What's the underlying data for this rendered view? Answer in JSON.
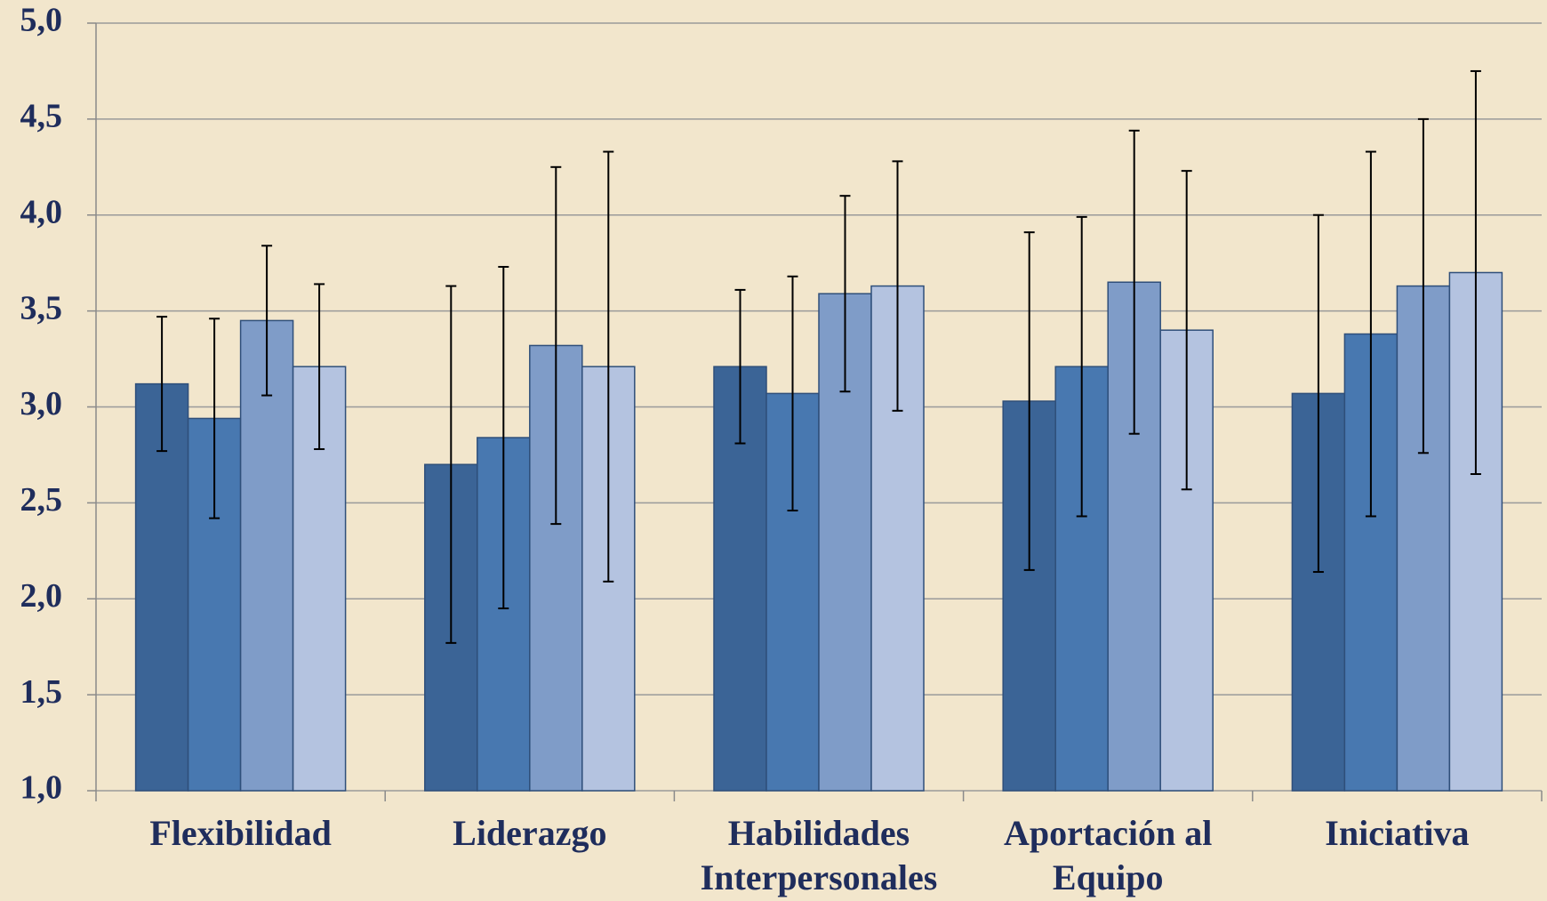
{
  "chart_data": {
    "type": "bar",
    "categories": [
      "Flexibilidad",
      "Liderazgo",
      "Habilidades Interpersonales",
      "Aportación al Equipo",
      "Iniciativa"
    ],
    "series": [
      {
        "color": "#3b6496",
        "values": [
          3.12,
          2.7,
          3.21,
          3.03,
          3.07
        ],
        "errors": [
          0.35,
          0.93,
          0.4,
          0.88,
          0.93
        ]
      },
      {
        "color": "#4878b0",
        "values": [
          2.94,
          2.84,
          3.07,
          3.21,
          3.38
        ],
        "errors": [
          0.52,
          0.89,
          0.61,
          0.78,
          0.95
        ]
      },
      {
        "color": "#7f9cc8",
        "values": [
          3.45,
          3.32,
          3.59,
          3.65,
          3.63
        ],
        "errors": [
          0.39,
          0.93,
          0.51,
          0.79,
          0.87
        ]
      },
      {
        "color": "#b4c3e0",
        "values": [
          3.21,
          3.21,
          3.63,
          3.4,
          3.7
        ],
        "errors": [
          0.43,
          1.12,
          0.65,
          0.83,
          1.05
        ]
      }
    ],
    "ylim": [
      1.0,
      5.0
    ],
    "yticks": [
      {
        "value": 1.0,
        "label": "1,0"
      },
      {
        "value": 1.5,
        "label": "1,5"
      },
      {
        "value": 2.0,
        "label": "2,0"
      },
      {
        "value": 2.5,
        "label": "2,5"
      },
      {
        "value": 3.0,
        "label": "3,0"
      },
      {
        "value": 3.5,
        "label": "3,5"
      },
      {
        "value": 4.0,
        "label": "4,0"
      },
      {
        "value": 4.5,
        "label": "4,5"
      },
      {
        "value": 5.0,
        "label": "5,0"
      }
    ],
    "grid": true
  }
}
